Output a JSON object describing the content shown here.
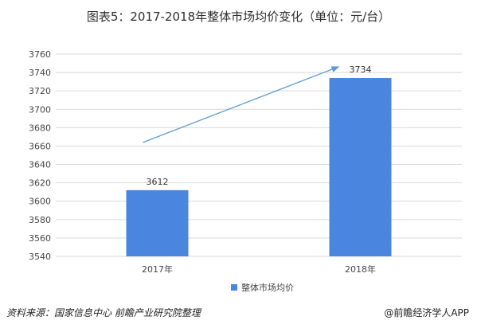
{
  "title": "图表5：2017-2018年整体市场均价变化（单位：元/台）",
  "chart_data": {
    "type": "bar",
    "categories": [
      "2017年",
      "2018年"
    ],
    "series": [
      {
        "name": "整体市场均价",
        "values": [
          3612,
          3734
        ]
      }
    ],
    "data_labels": [
      "3612",
      "3734"
    ],
    "ylim": [
      3540,
      3760
    ],
    "y_ticks": [
      3540,
      3560,
      3580,
      3600,
      3620,
      3640,
      3660,
      3680,
      3700,
      3720,
      3740,
      3760
    ],
    "grid": true,
    "legend_position": "bottom",
    "bar_color": "#4a86e0",
    "trend_arrow_color": "#5b9bd5",
    "gridline_color": "#d9d9d9"
  },
  "footer": {
    "source": "资料来源：国家信息中心 前瞻产业研究院整理",
    "brand": "@前瞻经济学人APP"
  }
}
